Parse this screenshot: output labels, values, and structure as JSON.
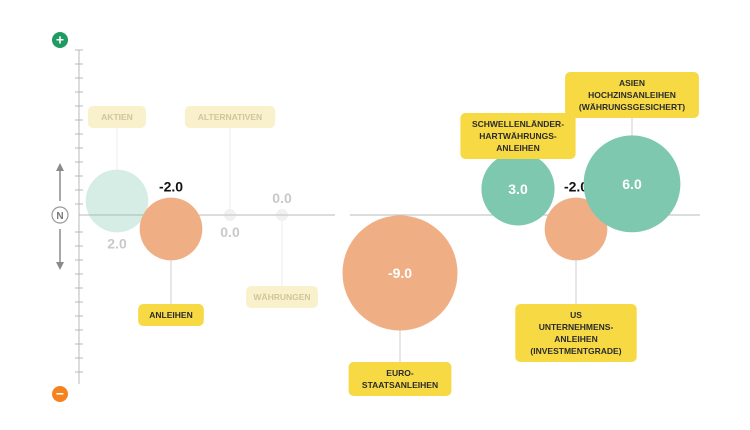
{
  "chart_data": {
    "type": "bubble",
    "scale": {
      "top_symbol": "+",
      "bottom_symbol": "−",
      "neutral_symbol": "N"
    },
    "colors": {
      "positive": "#7ec8b0",
      "negative": "#f0ae84",
      "neutral": "#d3d3d3",
      "label_bg": "#f7d944",
      "label_bg_faded": "#f9f1cc",
      "plus_button": "#1f9a63",
      "minus_button": "#f5821f",
      "axis": "#b9b9b9"
    },
    "items": [
      {
        "name": "AKTIEN",
        "value": 2.0,
        "value_text": "2.0",
        "faded": true,
        "label_side": "above",
        "color": "positive"
      },
      {
        "name": "ANLEIHEN",
        "value": -2.0,
        "value_text": "-2.0",
        "faded": false,
        "label_side": "below",
        "color": "negative"
      },
      {
        "name": "ALTERNATIVEN",
        "value": 0.0,
        "value_text": "0.0",
        "faded": true,
        "label_side": "above",
        "color": "neutral"
      },
      {
        "name": "WÄHRUNGEN",
        "value": 0.0,
        "value_text": "0.0",
        "faded": true,
        "label_side": "below",
        "color": "neutral"
      },
      {
        "name": "EURO-\nSTAATSANLEIHEN",
        "value": -9.0,
        "value_text": "-9.0",
        "faded": false,
        "label_side": "below",
        "color": "negative"
      },
      {
        "name": "SCHWELLENLÄNDER-\nHARTWÄHRUNGS-\nANLEIHEN",
        "value": 3.0,
        "value_text": "3.0",
        "faded": false,
        "label_side": "above",
        "color": "positive"
      },
      {
        "name": "US\nUNTERNEHMENS-\nANLEIHEN\n(INVESTMENTGRADE)",
        "value": -2.0,
        "value_text": "-2.0",
        "faded": false,
        "label_side": "below",
        "color": "negative"
      },
      {
        "name": "ASIEN\nHOCHZINSANLEIHEN\n(WÄHRUNGSGESICHERT)",
        "value": 6.0,
        "value_text": "6.0",
        "faded": false,
        "label_side": "above",
        "color": "positive"
      }
    ]
  }
}
